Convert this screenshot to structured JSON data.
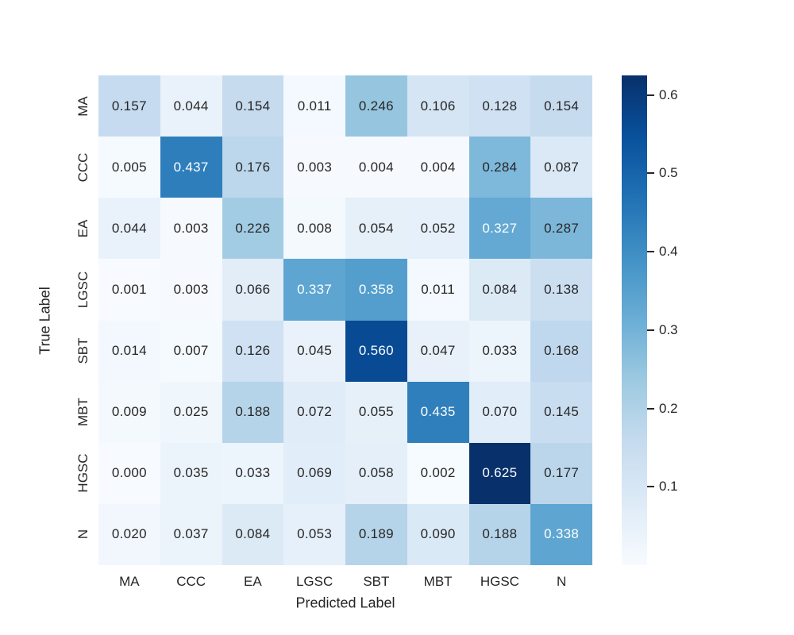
{
  "chart_data": {
    "type": "heatmap",
    "colormap": "Blues",
    "x_categories": [
      "MA",
      "CCC",
      "EA",
      "LGSC",
      "SBT",
      "MBT",
      "HGSC",
      "N"
    ],
    "y_categories": [
      "MA",
      "CCC",
      "EA",
      "LGSC",
      "SBT",
      "MBT",
      "HGSC",
      "N"
    ],
    "xlabel": "Predicted Label",
    "ylabel": "True Label",
    "values": [
      [
        0.157,
        0.044,
        0.154,
        0.011,
        0.246,
        0.106,
        0.128,
        0.154
      ],
      [
        0.005,
        0.437,
        0.176,
        0.003,
        0.004,
        0.004,
        0.284,
        0.087
      ],
      [
        0.044,
        0.003,
        0.226,
        0.008,
        0.054,
        0.052,
        0.327,
        0.287
      ],
      [
        0.001,
        0.003,
        0.066,
        0.337,
        0.358,
        0.011,
        0.084,
        0.138
      ],
      [
        0.014,
        0.007,
        0.126,
        0.045,
        0.56,
        0.047,
        0.033,
        0.168
      ],
      [
        0.009,
        0.025,
        0.188,
        0.072,
        0.055,
        0.435,
        0.07,
        0.145
      ],
      [
        0.0,
        0.035,
        0.033,
        0.069,
        0.058,
        0.002,
        0.625,
        0.177
      ],
      [
        0.02,
        0.037,
        0.084,
        0.053,
        0.189,
        0.09,
        0.188,
        0.338
      ]
    ],
    "value_decimals": 3,
    "vmin": 0,
    "vmax": 0.625,
    "colorbar_ticks": [
      0.1,
      0.2,
      0.3,
      0.4,
      0.5,
      0.6
    ],
    "colorbar_tick_labels": [
      "0.1",
      "0.2",
      "0.3",
      "0.4",
      "0.5",
      "0.6"
    ],
    "legend_position": "right-colorbar",
    "grid": false
  },
  "colors": {
    "background": "#ffffff",
    "tick_text": "#262626",
    "annotation_dark": "#262626",
    "annotation_light": "#ffffff",
    "blues_anchors": [
      "#f7fbff",
      "#deebf7",
      "#c6dbef",
      "#9ecae1",
      "#6baed6",
      "#4292c6",
      "#2171b5",
      "#08519c",
      "#08306b"
    ]
  }
}
